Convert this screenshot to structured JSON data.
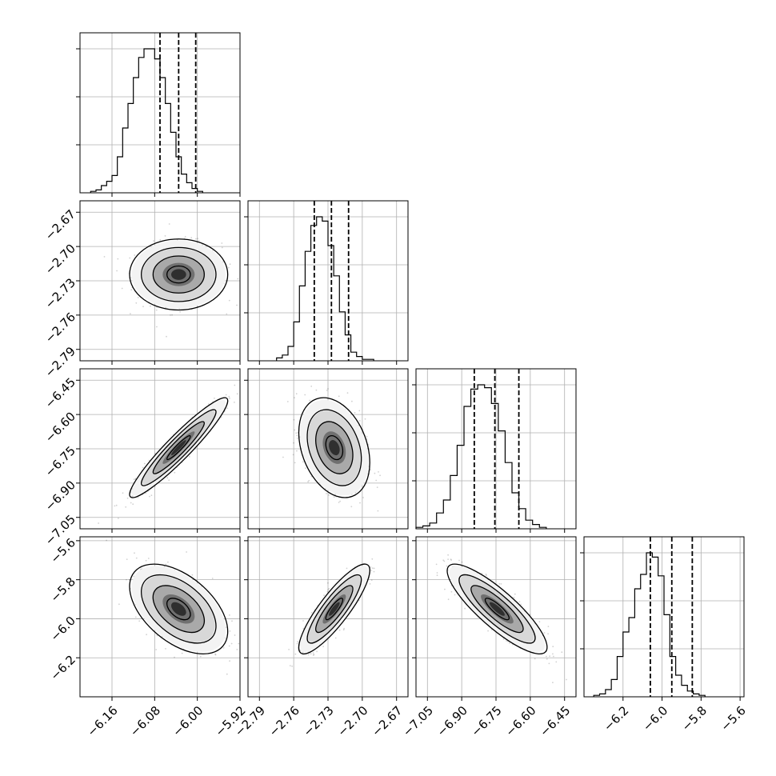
{
  "chart_data": {
    "type": "corner",
    "title": "",
    "n_params": 4,
    "grid": true,
    "params": [
      {
        "range": [
          -6.22,
          -5.92
        ],
        "ticks": [
          "−6.16",
          "−6.08",
          "−6.00",
          "−5.92"
        ],
        "quantiles": [
          -6.07,
          -6.035,
          -6.003
        ],
        "hist": {
          "edges_start": -6.2,
          "bin_width": 0.01,
          "counts": [
            1,
            2,
            5,
            8,
            12,
            25,
            45,
            62,
            80,
            94,
            100,
            100,
            93,
            80,
            62,
            42,
            25,
            13,
            7,
            3,
            1
          ]
        }
      },
      {
        "range": [
          -2.8,
          -2.66
        ],
        "ticks": [
          "−2.79",
          "−2.76",
          "−2.73",
          "−2.70",
          "−2.67"
        ],
        "quantiles": [
          -2.742,
          -2.727,
          -2.712
        ],
        "hist": {
          "edges_start": -2.775,
          "bin_width": 0.005,
          "counts": [
            2,
            4,
            10,
            27,
            52,
            76,
            94,
            100,
            97,
            80,
            59,
            34,
            18,
            6,
            3,
            1,
            1
          ]
        }
      },
      {
        "range": [
          -7.1,
          -6.4
        ],
        "ticks": [
          "−7.05",
          "−6.90",
          "−6.75",
          "−6.60",
          "−6.45"
        ],
        "quantiles": [
          -6.845,
          -6.755,
          -6.65
        ],
        "hist": {
          "edges_start": -7.1,
          "bin_width": 0.03,
          "counts": [
            1,
            2,
            4,
            11,
            20,
            37,
            58,
            85,
            97,
            100,
            98,
            87,
            68,
            46,
            25,
            14,
            6,
            3,
            1
          ]
        }
      },
      {
        "range": [
          -6.4,
          -5.58
        ],
        "ticks": [
          "−6.2",
          "−6.0",
          "−5.8",
          "−5.6"
        ],
        "quantiles": [
          -6.06,
          -5.95,
          -5.845
        ],
        "hist": {
          "edges_start": -6.35,
          "bin_width": 0.03,
          "counts": [
            1,
            2,
            5,
            12,
            28,
            45,
            55,
            75,
            85,
            100,
            97,
            84,
            57,
            28,
            15,
            8,
            4,
            2,
            1
          ]
        }
      }
    ],
    "pairs": [
      {
        "i": 1,
        "j": 0,
        "mean": [
          -6.035,
          -2.7245
        ],
        "sd": [
          0.04,
          0.0135
        ],
        "rho": 0.0
      },
      {
        "i": 2,
        "j": 0,
        "mean": [
          -6.035,
          -6.745
        ],
        "sd": [
          0.04,
          0.095
        ],
        "rho": 0.94
      },
      {
        "i": 2,
        "j": 1,
        "mean": [
          -2.7245,
          -6.745
        ],
        "sd": [
          0.0135,
          0.095
        ],
        "rho": -0.3
      },
      {
        "i": 3,
        "j": 0,
        "mean": [
          -6.035,
          -5.95
        ],
        "sd": [
          0.04,
          0.1
        ],
        "rho": -0.5
      },
      {
        "i": 3,
        "j": 1,
        "mean": [
          -2.7245,
          -5.95
        ],
        "sd": [
          0.0135,
          0.1
        ],
        "rho": 0.86
      },
      {
        "i": 3,
        "j": 2,
        "mean": [
          -6.745,
          -5.95
        ],
        "sd": [
          0.095,
          0.1
        ],
        "rho": -0.85
      }
    ]
  }
}
